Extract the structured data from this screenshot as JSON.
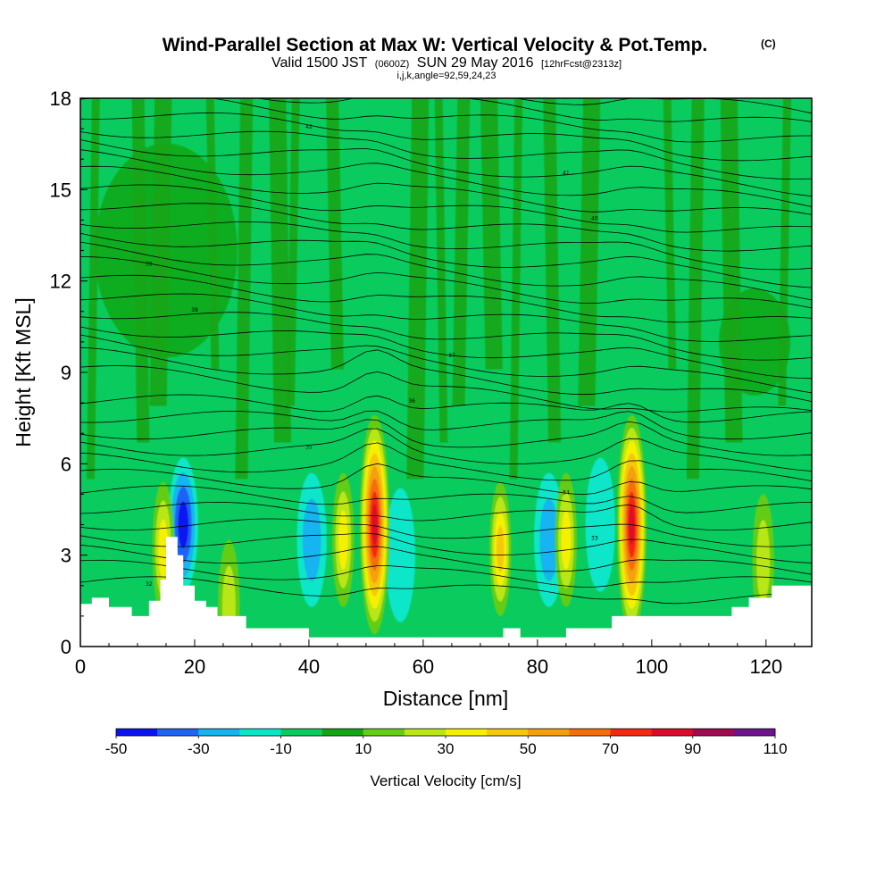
{
  "title": {
    "main": "Wind-Parallel Section at Max W: Vertical Velocity & Pot.Temp.",
    "units": "(C)",
    "line2_a": "Valid 1500 JST",
    "line2_b": "(0600Z)",
    "line2_c": "SUN 29 May 2016",
    "line2_d": "[12hrFcst@2313z]",
    "line3": "i,j,k,angle=92,59,24,23"
  },
  "colors": {
    "terrain": "#ffffff",
    "background_field": "#0acc5e",
    "contour": "#000000",
    "scale": [
      "#0a14f0",
      "#1e64f5",
      "#14b4f0",
      "#0ae6c8",
      "#0acc5e",
      "#14a514",
      "#64cd14",
      "#b9e614",
      "#f5f000",
      "#f5c80a",
      "#f5a00a",
      "#f56e0a",
      "#f52814",
      "#dc0a28",
      "#a00a50",
      "#6e148c"
    ]
  },
  "chart_data": {
    "type": "heatmap",
    "title": "Wind-Parallel Section at Max W: Vertical Velocity & Pot.Temp.",
    "xlabel": "Distance [nm]",
    "ylabel": "Height [Kft MSL]",
    "xlim": [
      0,
      128
    ],
    "ylim": [
      0,
      18
    ],
    "x_ticks": [
      0,
      20,
      40,
      60,
      80,
      100,
      120
    ],
    "y_ticks": [
      0,
      3,
      6,
      9,
      12,
      15,
      18
    ],
    "colorbar": {
      "title": "Vertical Velocity [cm/s]",
      "bounds": [
        -50,
        -40,
        -30,
        -20,
        -10,
        0,
        10,
        20,
        30,
        40,
        50,
        60,
        70,
        80,
        90,
        100,
        110
      ],
      "labels": [
        "-50",
        "-30",
        "-10",
        "10",
        "30",
        "50",
        "70",
        "90",
        "110"
      ]
    },
    "updrafts": [
      {
        "x": 51.5,
        "z": 4.0,
        "w_max": 85
      },
      {
        "x": 96.5,
        "z": 4.0,
        "w_max": 80
      },
      {
        "x": 73.5,
        "z": 3.2,
        "w_max": 40
      },
      {
        "x": 85.0,
        "z": 3.5,
        "w_max": 35
      },
      {
        "x": 46.0,
        "z": 3.5,
        "w_max": 35
      },
      {
        "x": 14.5,
        "z": 3.2,
        "w_max": 35
      },
      {
        "x": 119.5,
        "z": 2.8,
        "w_max": 25
      },
      {
        "x": 26.0,
        "z": 1.3,
        "w_max": 25
      }
    ],
    "downdrafts": [
      {
        "x": 18.0,
        "z": 4.0,
        "w_min": -45
      },
      {
        "x": 40.5,
        "z": 3.5,
        "w_min": -25
      },
      {
        "x": 56.0,
        "z": 3.0,
        "w_min": -15
      },
      {
        "x": 82.0,
        "z": 3.5,
        "w_min": -20
      },
      {
        "x": 91.0,
        "z": 4.0,
        "w_min": -15
      }
    ],
    "terrain_profile": [
      [
        0,
        1.4
      ],
      [
        2,
        1.4
      ],
      [
        2,
        1.6
      ],
      [
        5,
        1.6
      ],
      [
        5,
        1.3
      ],
      [
        9,
        1.3
      ],
      [
        9,
        1.0
      ],
      [
        12,
        1.0
      ],
      [
        12,
        1.5
      ],
      [
        14,
        1.5
      ],
      [
        14,
        2.2
      ],
      [
        15,
        2.2
      ],
      [
        15,
        3.6
      ],
      [
        17,
        3.6
      ],
      [
        17,
        3.0
      ],
      [
        18,
        3.0
      ],
      [
        18,
        2.0
      ],
      [
        20,
        2.0
      ],
      [
        20,
        1.5
      ],
      [
        22,
        1.5
      ],
      [
        22,
        1.3
      ],
      [
        24,
        1.3
      ],
      [
        24,
        1.0
      ],
      [
        29,
        1.0
      ],
      [
        29,
        0.6
      ],
      [
        40,
        0.6
      ],
      [
        40,
        0.3
      ],
      [
        74,
        0.3
      ],
      [
        74,
        0.6
      ],
      [
        77,
        0.6
      ],
      [
        77,
        0.3
      ],
      [
        85,
        0.3
      ],
      [
        85,
        0.6
      ],
      [
        93,
        0.6
      ],
      [
        93,
        1.0
      ],
      [
        114,
        1.0
      ],
      [
        114,
        1.3
      ],
      [
        117,
        1.3
      ],
      [
        117,
        1.6
      ],
      [
        121,
        1.6
      ],
      [
        121,
        2.0
      ],
      [
        128,
        2.0
      ]
    ],
    "pot_temp_labels": [
      "32",
      "33",
      "34",
      "35",
      "36",
      "37",
      "38",
      "39",
      "40",
      "41",
      "42",
      "43",
      "44",
      "45"
    ]
  }
}
